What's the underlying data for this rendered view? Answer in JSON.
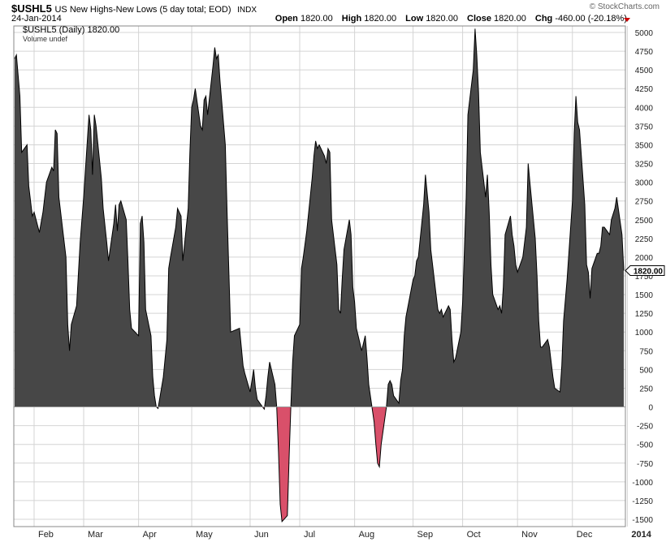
{
  "header": {
    "symbol": "$USHL5",
    "description": "US New Highs-New Lows (5 day total; EOD)",
    "exchange": "INDX",
    "credit": "© StockCharts.com",
    "date": "24-Jan-2014",
    "open_label": "Open",
    "open_value": "1820.00",
    "high_label": "High",
    "high_value": "1820.00",
    "low_label": "Low",
    "low_value": "1820.00",
    "close_label": "Close",
    "close_value": "1820.00",
    "chg_label": "Chg",
    "chg_value": "-460.00 (-20.18%)"
  },
  "legend": {
    "series_line": "$USHL5 (Daily) 1820.00",
    "volume_line": "Volume undef"
  },
  "colors": {
    "positive_fill": "#474747",
    "negative_fill": "#d9506a",
    "line": "#000000",
    "grid": "#d4d4d4"
  },
  "chart_data": {
    "type": "area",
    "title": "US New Highs-New Lows (5 day total; EOD)",
    "ylim": [
      -1600,
      5100
    ],
    "yticks": [
      -1500,
      -1250,
      -1000,
      -750,
      -500,
      -250,
      0,
      250,
      500,
      750,
      1000,
      1250,
      1500,
      1750,
      2000,
      2250,
      2500,
      2750,
      3000,
      3250,
      3500,
      3750,
      4000,
      4250,
      4500,
      4750,
      5000
    ],
    "xtick_labels": [
      "Feb",
      "Mar",
      "Apr",
      "May",
      "Jun",
      "Jul",
      "Aug",
      "Sep",
      "Oct",
      "Nov",
      "Dec",
      "2014"
    ],
    "xtick_dates": [
      "2013-02-01",
      "2013-03-01",
      "2013-04-01",
      "2013-05-01",
      "2013-06-03",
      "2013-07-01",
      "2013-08-01",
      "2013-09-03",
      "2013-10-01",
      "2013-11-01",
      "2013-12-02",
      "2014-01-02"
    ],
    "last_value_label": "1820.00",
    "series": [
      {
        "values": [
          [
            "2013-01-21",
            4650
          ],
          [
            "2013-01-22",
            4700
          ],
          [
            "2013-01-24",
            4150
          ],
          [
            "2013-01-25",
            3400
          ],
          [
            "2013-01-28",
            3500
          ],
          [
            "2013-01-29",
            2950
          ],
          [
            "2013-01-31",
            2550
          ],
          [
            "2013-02-01",
            2600
          ],
          [
            "2013-02-04",
            2330
          ],
          [
            "2013-02-06",
            2600
          ],
          [
            "2013-02-08",
            3000
          ],
          [
            "2013-02-11",
            3200
          ],
          [
            "2013-02-12",
            3150
          ],
          [
            "2013-02-13",
            3700
          ],
          [
            "2013-02-14",
            3650
          ],
          [
            "2013-02-15",
            2800
          ],
          [
            "2013-02-19",
            2000
          ],
          [
            "2013-02-20",
            1100
          ],
          [
            "2013-02-21",
            750
          ],
          [
            "2013-02-22",
            1100
          ],
          [
            "2013-02-25",
            1350
          ],
          [
            "2013-02-27",
            2200
          ],
          [
            "2013-03-01",
            2800
          ],
          [
            "2013-03-04",
            3900
          ],
          [
            "2013-03-05",
            3700
          ],
          [
            "2013-03-06",
            3100
          ],
          [
            "2013-03-07",
            3900
          ],
          [
            "2013-03-08",
            3750
          ],
          [
            "2013-03-11",
            3050
          ],
          [
            "2013-03-12",
            2650
          ],
          [
            "2013-03-14",
            2200
          ],
          [
            "2013-03-15",
            1950
          ],
          [
            "2013-03-18",
            2450
          ],
          [
            "2013-03-19",
            2700
          ],
          [
            "2013-03-20",
            2350
          ],
          [
            "2013-03-21",
            2700
          ],
          [
            "2013-03-22",
            2750
          ],
          [
            "2013-03-25",
            2500
          ],
          [
            "2013-03-26",
            1950
          ],
          [
            "2013-03-27",
            1300
          ],
          [
            "2013-03-28",
            1050
          ],
          [
            "2013-04-01",
            950
          ],
          [
            "2013-04-02",
            2450
          ],
          [
            "2013-04-03",
            2550
          ],
          [
            "2013-04-04",
            2200
          ],
          [
            "2013-04-05",
            1300
          ],
          [
            "2013-04-08",
            950
          ],
          [
            "2013-04-09",
            400
          ],
          [
            "2013-04-10",
            150
          ],
          [
            "2013-04-11",
            0
          ],
          [
            "2013-04-12",
            -20
          ],
          [
            "2013-04-15",
            400
          ],
          [
            "2013-04-17",
            900
          ],
          [
            "2013-04-18",
            1850
          ],
          [
            "2013-04-19",
            2000
          ],
          [
            "2013-04-22",
            2400
          ],
          [
            "2013-04-23",
            2650
          ],
          [
            "2013-04-25",
            2550
          ],
          [
            "2013-04-26",
            1950
          ],
          [
            "2013-04-29",
            2650
          ],
          [
            "2013-04-30",
            3400
          ],
          [
            "2013-05-01",
            4000
          ],
          [
            "2013-05-02",
            4100
          ],
          [
            "2013-05-03",
            4250
          ],
          [
            "2013-05-06",
            3750
          ],
          [
            "2013-05-07",
            3700
          ],
          [
            "2013-05-08",
            4100
          ],
          [
            "2013-05-09",
            4150
          ],
          [
            "2013-05-10",
            3900
          ],
          [
            "2013-05-13",
            4550
          ],
          [
            "2013-05-14",
            4800
          ],
          [
            "2013-05-15",
            4650
          ],
          [
            "2013-05-16",
            4700
          ],
          [
            "2013-05-17",
            4350
          ],
          [
            "2013-05-20",
            3500
          ],
          [
            "2013-05-21",
            2600
          ],
          [
            "2013-05-22",
            1800
          ],
          [
            "2013-05-23",
            1000
          ],
          [
            "2013-05-28",
            1050
          ],
          [
            "2013-05-29",
            800
          ],
          [
            "2013-05-30",
            550
          ],
          [
            "2013-05-31",
            450
          ],
          [
            "2013-06-03",
            200
          ],
          [
            "2013-06-04",
            350
          ],
          [
            "2013-06-05",
            500
          ],
          [
            "2013-06-06",
            250
          ],
          [
            "2013-06-07",
            100
          ],
          [
            "2013-06-10",
            0
          ],
          [
            "2013-06-11",
            -30
          ],
          [
            "2013-06-12",
            150
          ],
          [
            "2013-06-13",
            400
          ],
          [
            "2013-06-14",
            600
          ],
          [
            "2013-06-17",
            300
          ],
          [
            "2013-06-18",
            0
          ],
          [
            "2013-06-19",
            -600
          ],
          [
            "2013-06-20",
            -1300
          ],
          [
            "2013-06-21",
            -1530
          ],
          [
            "2013-06-24",
            -1450
          ],
          [
            "2013-06-25",
            -700
          ],
          [
            "2013-06-26",
            0
          ],
          [
            "2013-06-27",
            600
          ],
          [
            "2013-06-28",
            950
          ],
          [
            "2013-07-01",
            1100
          ],
          [
            "2013-07-02",
            1850
          ],
          [
            "2013-07-03",
            2000
          ],
          [
            "2013-07-05",
            2350
          ],
          [
            "2013-07-08",
            3050
          ],
          [
            "2013-07-09",
            3350
          ],
          [
            "2013-07-10",
            3550
          ],
          [
            "2013-07-11",
            3450
          ],
          [
            "2013-07-12",
            3500
          ],
          [
            "2013-07-15",
            3350
          ],
          [
            "2013-07-16",
            3250
          ],
          [
            "2013-07-17",
            3450
          ],
          [
            "2013-07-18",
            3400
          ],
          [
            "2013-07-19",
            2500
          ],
          [
            "2013-07-22",
            1900
          ],
          [
            "2013-07-23",
            1300
          ],
          [
            "2013-07-24",
            1250
          ],
          [
            "2013-07-25",
            1700
          ],
          [
            "2013-07-26",
            2100
          ],
          [
            "2013-07-29",
            2500
          ],
          [
            "2013-07-30",
            2300
          ],
          [
            "2013-07-31",
            1600
          ],
          [
            "2013-08-01",
            1400
          ],
          [
            "2013-08-02",
            1050
          ],
          [
            "2013-08-05",
            750
          ],
          [
            "2013-08-06",
            850
          ],
          [
            "2013-08-07",
            950
          ],
          [
            "2013-08-08",
            650
          ],
          [
            "2013-08-09",
            300
          ],
          [
            "2013-08-12",
            -200
          ],
          [
            "2013-08-13",
            -500
          ],
          [
            "2013-08-14",
            -750
          ],
          [
            "2013-08-15",
            -800
          ],
          [
            "2013-08-16",
            -500
          ],
          [
            "2013-08-19",
            0
          ],
          [
            "2013-08-20",
            300
          ],
          [
            "2013-08-21",
            350
          ],
          [
            "2013-08-22",
            300
          ],
          [
            "2013-08-23",
            150
          ],
          [
            "2013-08-26",
            50
          ],
          [
            "2013-08-27",
            350
          ],
          [
            "2013-08-28",
            500
          ],
          [
            "2013-08-29",
            950
          ],
          [
            "2013-08-30",
            1200
          ],
          [
            "2013-09-03",
            1700
          ],
          [
            "2013-09-04",
            1750
          ],
          [
            "2013-09-05",
            1950
          ],
          [
            "2013-09-06",
            2000
          ],
          [
            "2013-09-09",
            2700
          ],
          [
            "2013-09-10",
            3100
          ],
          [
            "2013-09-11",
            2850
          ],
          [
            "2013-09-12",
            2600
          ],
          [
            "2013-09-13",
            2100
          ],
          [
            "2013-09-16",
            1500
          ],
          [
            "2013-09-17",
            1300
          ],
          [
            "2013-09-18",
            1250
          ],
          [
            "2013-09-19",
            1300
          ],
          [
            "2013-09-20",
            1200
          ],
          [
            "2013-09-23",
            1350
          ],
          [
            "2013-09-24",
            1300
          ],
          [
            "2013-09-25",
            900
          ],
          [
            "2013-09-26",
            600
          ],
          [
            "2013-09-27",
            650
          ],
          [
            "2013-09-30",
            1000
          ],
          [
            "2013-10-01",
            1400
          ],
          [
            "2013-10-02",
            2100
          ],
          [
            "2013-10-03",
            2800
          ],
          [
            "2013-10-04",
            3900
          ],
          [
            "2013-10-07",
            4500
          ],
          [
            "2013-10-08",
            5050
          ],
          [
            "2013-10-09",
            4700
          ],
          [
            "2013-10-10",
            4200
          ],
          [
            "2013-10-11",
            3400
          ],
          [
            "2013-10-14",
            2800
          ],
          [
            "2013-10-15",
            3100
          ],
          [
            "2013-10-16",
            2600
          ],
          [
            "2013-10-17",
            1900
          ],
          [
            "2013-10-18",
            1500
          ],
          [
            "2013-10-21",
            1300
          ],
          [
            "2013-10-22",
            1350
          ],
          [
            "2013-10-23",
            1250
          ],
          [
            "2013-10-24",
            1600
          ],
          [
            "2013-10-25",
            2300
          ],
          [
            "2013-10-28",
            2550
          ],
          [
            "2013-10-29",
            2300
          ],
          [
            "2013-10-30",
            2150
          ],
          [
            "2013-10-31",
            1900
          ],
          [
            "2013-11-01",
            1800
          ],
          [
            "2013-11-04",
            2000
          ],
          [
            "2013-11-05",
            2200
          ],
          [
            "2013-11-06",
            2400
          ],
          [
            "2013-11-07",
            3250
          ],
          [
            "2013-11-08",
            3000
          ],
          [
            "2013-11-11",
            2250
          ],
          [
            "2013-11-12",
            1750
          ],
          [
            "2013-11-13",
            1150
          ],
          [
            "2013-11-14",
            800
          ],
          [
            "2013-11-15",
            800
          ],
          [
            "2013-11-18",
            900
          ],
          [
            "2013-11-19",
            800
          ],
          [
            "2013-11-20",
            600
          ],
          [
            "2013-11-21",
            400
          ],
          [
            "2013-11-22",
            250
          ],
          [
            "2013-11-25",
            200
          ],
          [
            "2013-11-26",
            550
          ],
          [
            "2013-11-27",
            1150
          ],
          [
            "2013-11-29",
            1700
          ],
          [
            "2013-12-02",
            2750
          ],
          [
            "2013-12-03",
            3650
          ],
          [
            "2013-12-04",
            4150
          ],
          [
            "2013-12-05",
            3800
          ],
          [
            "2013-12-06",
            3700
          ],
          [
            "2013-12-09",
            2700
          ],
          [
            "2013-12-10",
            1900
          ],
          [
            "2013-12-11",
            1800
          ],
          [
            "2013-12-12",
            1450
          ],
          [
            "2013-12-13",
            1850
          ],
          [
            "2013-12-16",
            2050
          ],
          [
            "2013-12-17",
            2050
          ],
          [
            "2013-12-18",
            2150
          ],
          [
            "2013-12-19",
            2400
          ],
          [
            "2013-12-20",
            2400
          ],
          [
            "2013-12-23",
            2300
          ],
          [
            "2013-12-24",
            2500
          ],
          [
            "2013-12-26",
            2650
          ],
          [
            "2013-12-27",
            2800
          ],
          [
            "2013-12-30",
            2300
          ],
          [
            "2013-12-31",
            1820
          ]
        ]
      }
    ]
  }
}
